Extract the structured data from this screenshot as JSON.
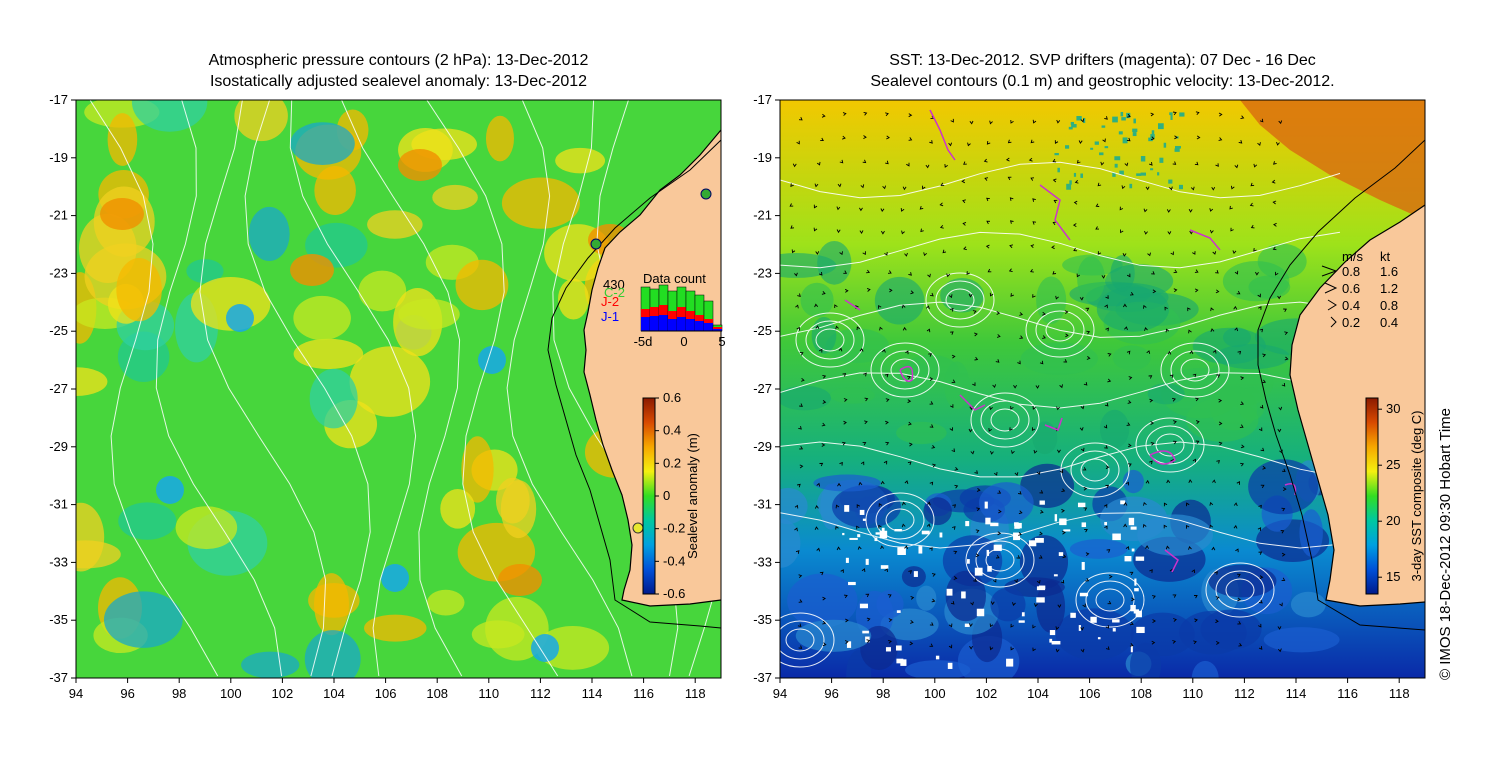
{
  "left_panel": {
    "title_line1": "Atmospheric pressure contours (2 hPa): 13-Dec-2012",
    "title_line2": "Isostatically adjusted sealevel anomaly: 13-Dec-2012",
    "colorbar": {
      "label": "Sealevel anomaly (m)",
      "ticks": [
        "0.6",
        "0.4",
        "0.2",
        "0",
        "-0.2",
        "-0.4",
        "-0.6"
      ],
      "colors": [
        "#8b1a00",
        "#d84a00",
        "#f7a800",
        "#f4f010",
        "#33dd22",
        "#00c8a0",
        "#00a0e0",
        "#0050d8",
        "#001a8c"
      ]
    },
    "data_count": {
      "title": "Data count",
      "total": "430",
      "overlay_label": "C-2",
      "legend": [
        {
          "label": "J-2",
          "color": "#ff0000"
        },
        {
          "label": "J-1",
          "color": "#0000ff"
        }
      ],
      "axis_ticks": [
        "-5d",
        "0",
        "5"
      ]
    }
  },
  "right_panel": {
    "title_line1": "SST: 13-Dec-2012. SVP drifters (magenta): 07 Dec - 16 Dec",
    "title_line2": "Sealevel contours (0.1 m) and geostrophic velocity: 13-Dec-2012.",
    "speed_legend": {
      "header_ms": "m/s",
      "header_kt": "kt",
      "rows": [
        {
          "ms": "0.8",
          "kt": "1.6"
        },
        {
          "ms": "0.6",
          "kt": "1.2"
        },
        {
          "ms": "0.4",
          "kt": "0.8"
        },
        {
          "ms": "0.2",
          "kt": "0.4"
        }
      ]
    },
    "colorbar": {
      "label": "3-day SST composite (deg C)",
      "ticks": [
        "30",
        "25",
        "20",
        "15"
      ],
      "colors": [
        "#8b1a00",
        "#d84a00",
        "#f7a800",
        "#f4f010",
        "#33dd22",
        "#00c8a0",
        "#00a0e0",
        "#0050d8",
        "#001a8c"
      ]
    }
  },
  "axes": {
    "x_ticks": [
      "94",
      "96",
      "98",
      "100",
      "102",
      "104",
      "106",
      "108",
      "110",
      "112",
      "114",
      "116",
      "118"
    ],
    "y_ticks": [
      "-17",
      "-19",
      "-21",
      "-23",
      "-25",
      "-27",
      "-29",
      "-31",
      "-33",
      "-35",
      "-37"
    ]
  },
  "credit": "© IMOS 18-Dec-2012 09:30 Hobart Time",
  "colors": {
    "land": "#f9c89a",
    "ocean_green": "#44d83a",
    "contour": "#ffffff",
    "drifter": "#cc33cc"
  }
}
